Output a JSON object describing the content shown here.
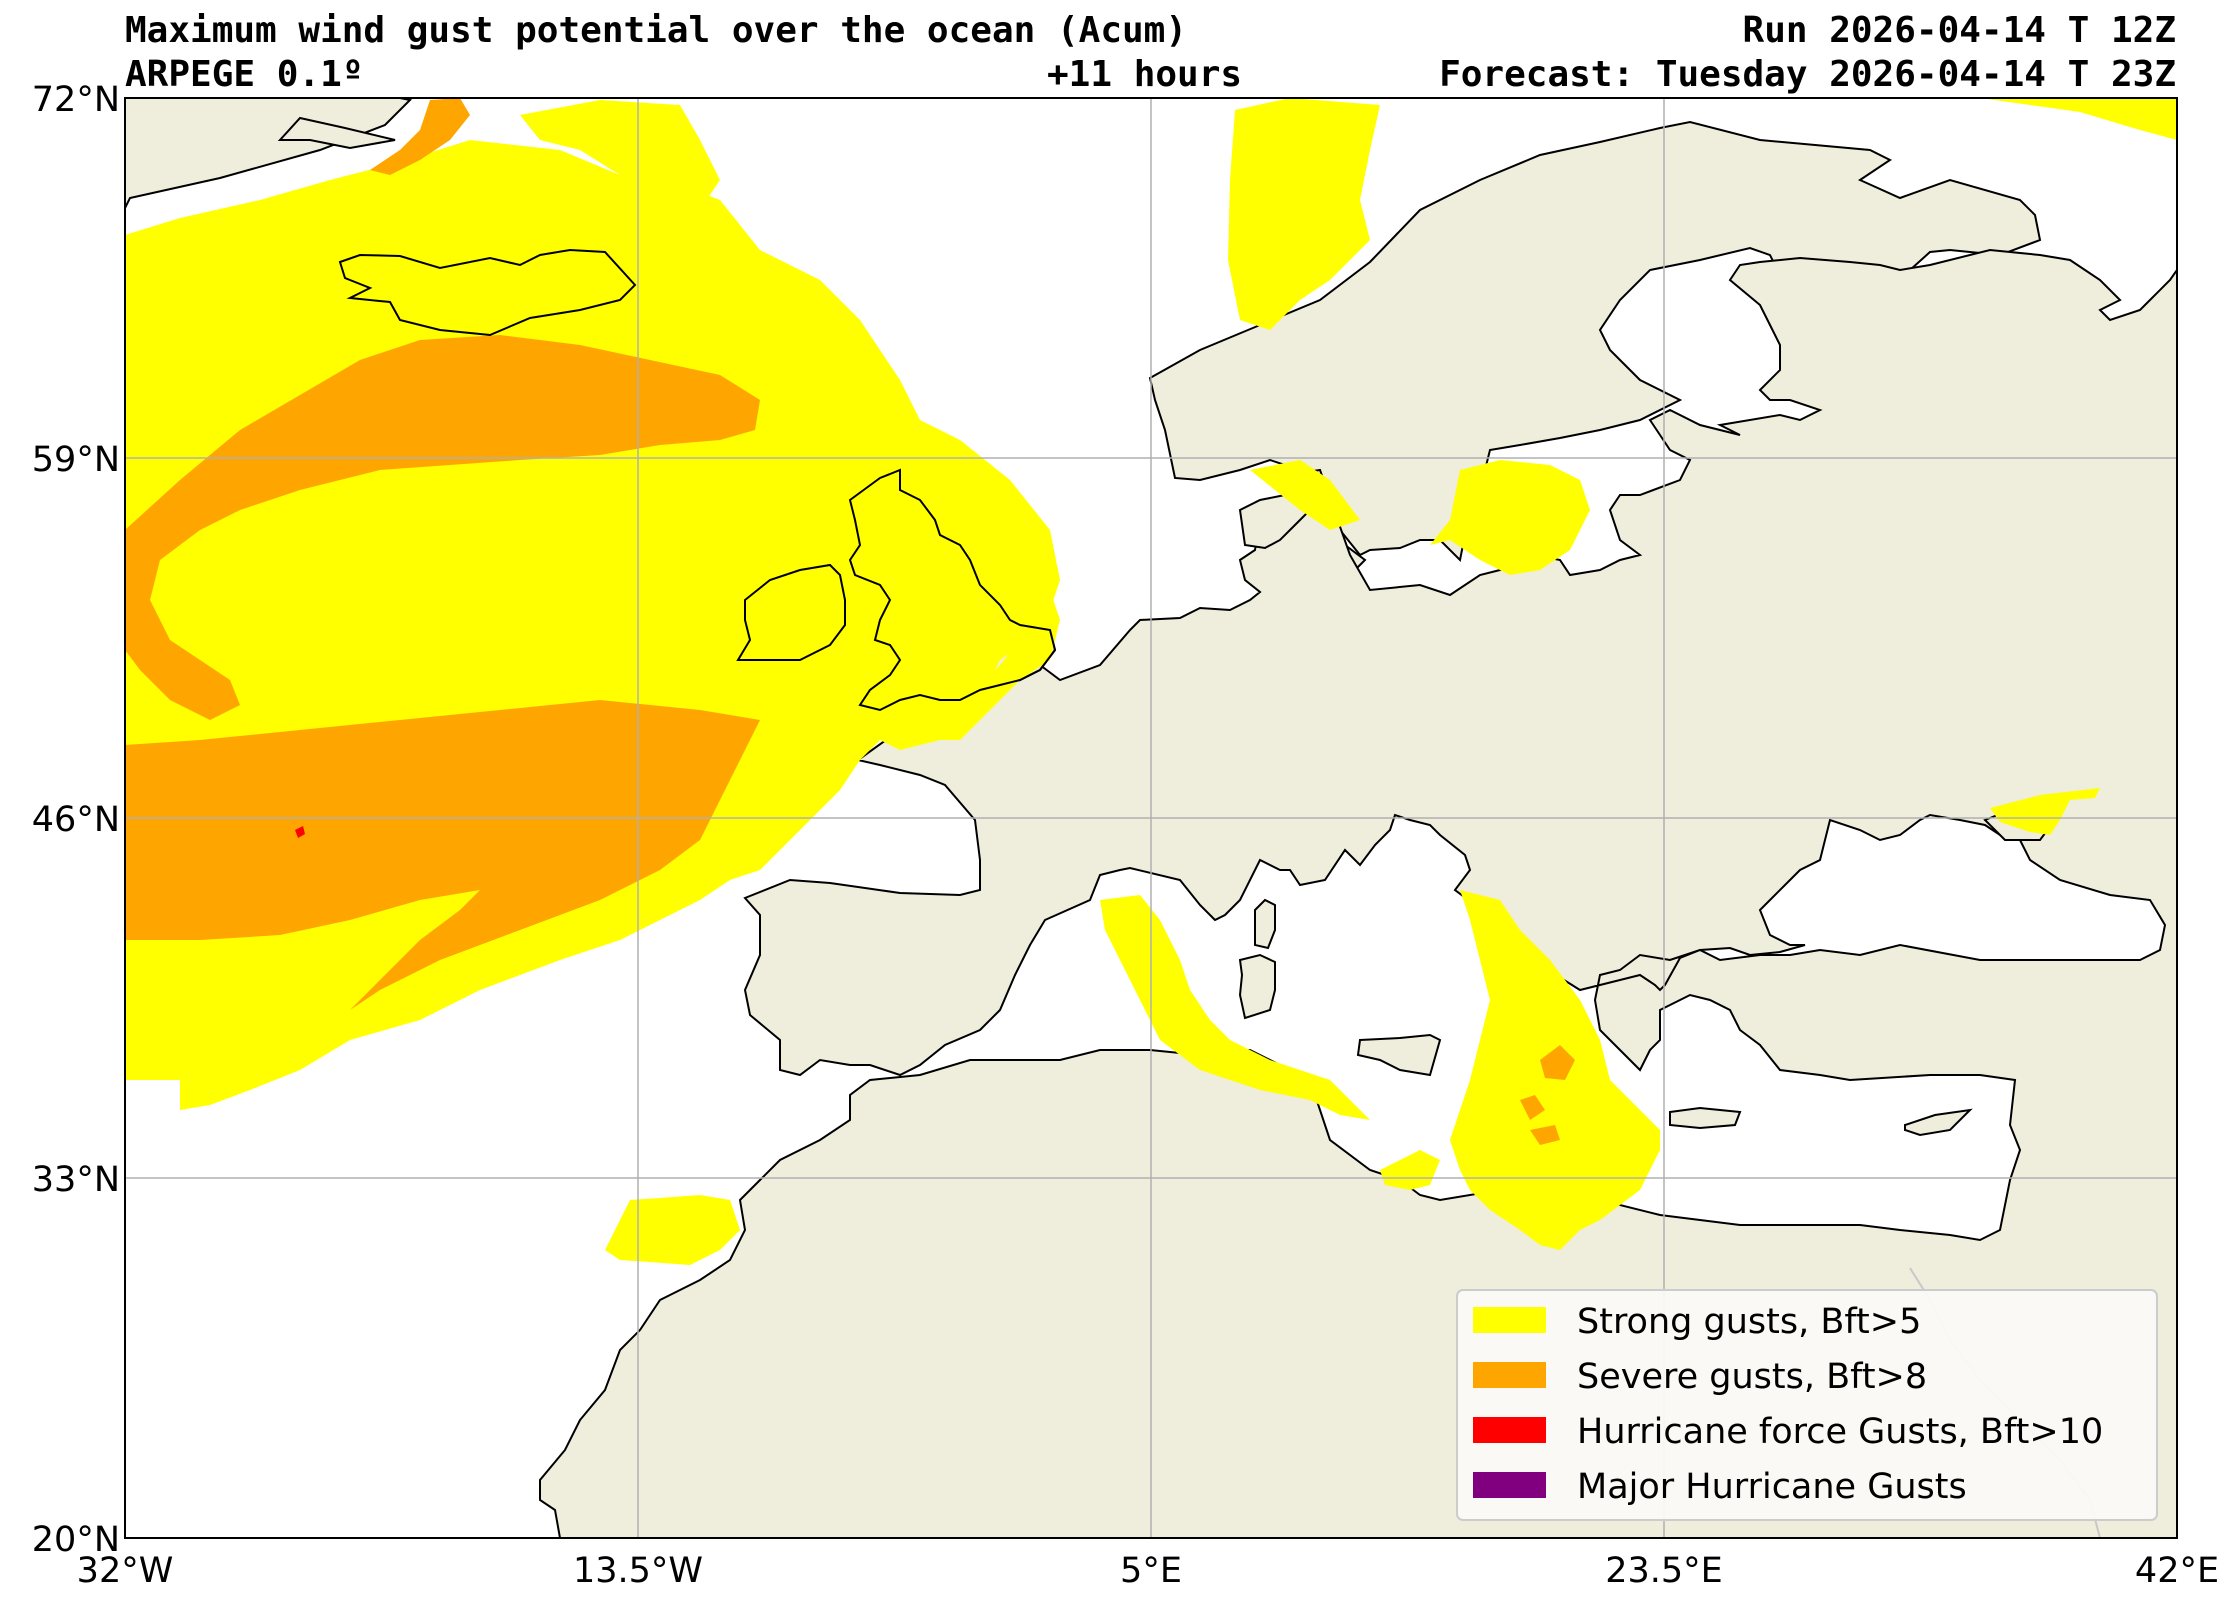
{
  "header": {
    "title": "Maximum wind gust potential over the ocean (Acum)",
    "model": "ARPEGE 0.1º",
    "lead_time": "+11 hours",
    "run": "Run 2026-04-14 T 12Z",
    "forecast": "Forecast: Tuesday 2026-04-14 T 23Z"
  },
  "axes": {
    "lat_labels": [
      "72°N",
      "59°N",
      "46°N",
      "33°N",
      "20°N"
    ],
    "lon_labels": [
      "32°W",
      "13.5°W",
      "5°E",
      "23.5°E",
      "42°E"
    ]
  },
  "legend": {
    "items": [
      {
        "label": "Strong gusts, Bft>5",
        "color": "#ffff00"
      },
      {
        "label": "Severe gusts, Bft>8",
        "color": "#ffa500"
      },
      {
        "label": "Hurricane force Gusts, Bft>10",
        "color": "#ff0000"
      },
      {
        "label": "Major Hurricane Gusts",
        "color": "#800080"
      }
    ]
  },
  "colors": {
    "land": "#efeddc",
    "ocean": "#ffffff",
    "gridline": "#b0b0b0"
  }
}
